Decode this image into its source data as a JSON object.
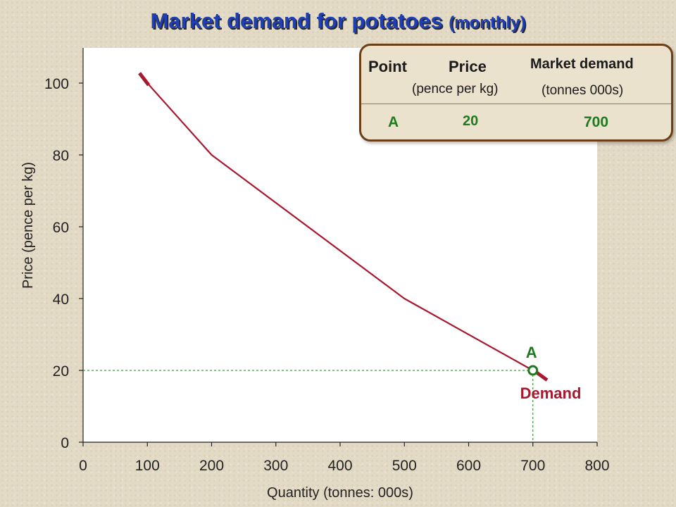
{
  "title": {
    "main": "Market demand for potatoes",
    "sub": "(monthly)"
  },
  "table": {
    "headers": {
      "point": "Point",
      "price": "Price",
      "price_unit": "(pence per kg)",
      "demand": "Market demand",
      "demand_unit": "(tonnes 000s)"
    },
    "row": {
      "point": "A",
      "price": "20",
      "demand": "700"
    }
  },
  "chart_data": {
    "type": "line",
    "xlabel": "Quantity (tonnes: 000s)",
    "ylabel": "Price (pence per kg)",
    "xlim": [
      0,
      800
    ],
    "ylim": [
      0,
      110
    ],
    "x_ticks": [
      0,
      100,
      200,
      300,
      400,
      500,
      600,
      700,
      800
    ],
    "y_ticks": [
      0,
      20,
      40,
      60,
      80,
      100
    ],
    "grid": false,
    "series": [
      {
        "name": "Demand",
        "color": "#a6192e",
        "x": [
          90,
          200,
          500,
          700,
          720
        ],
        "y": [
          102,
          80,
          40,
          20,
          17.5
        ]
      }
    ],
    "highlight_point": {
      "label": "A",
      "x": 700,
      "y": 20,
      "color": "#1f7a1f"
    }
  },
  "colors": {
    "title": "#1f3fb5",
    "demand": "#a6192e",
    "point": "#1f7a1f",
    "box_border": "#6b3f18",
    "plot_bg": "#ffffff"
  }
}
